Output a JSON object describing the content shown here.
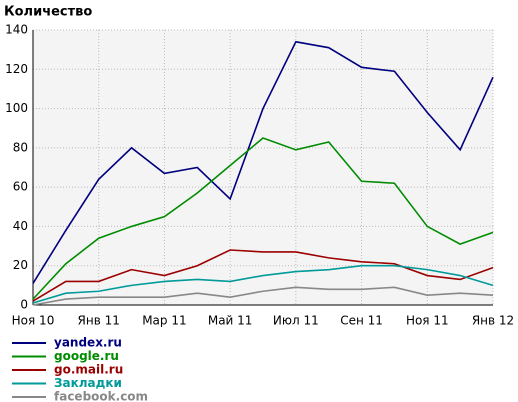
{
  "chart_data": {
    "type": "line",
    "title": "Количество",
    "categories": [
      "Ноя 10",
      null,
      "Янв 11",
      null,
      "Мар 11",
      null,
      "Май 11",
      null,
      "Июл 11",
      null,
      "Сен 11",
      null,
      "Ноя 11",
      null,
      "Янв 12"
    ],
    "series": [
      {
        "name": "yandex.ru",
        "color": "#00007f",
        "values": [
          11,
          38,
          64,
          80,
          67,
          70,
          54,
          100,
          134,
          131,
          121,
          119,
          98,
          79,
          116
        ]
      },
      {
        "name": "google.ru",
        "color": "#008c00",
        "values": [
          3,
          21,
          34,
          40,
          45,
          57,
          71,
          85,
          79,
          83,
          63,
          62,
          40,
          31,
          37
        ]
      },
      {
        "name": "go.mail.ru",
        "color": "#9b0000",
        "values": [
          2,
          12,
          12,
          18,
          15,
          20,
          28,
          27,
          27,
          24,
          22,
          21,
          15,
          13,
          19
        ]
      },
      {
        "name": "Закладки",
        "color": "#009a9a",
        "values": [
          1,
          6,
          7,
          10,
          12,
          13,
          12,
          15,
          17,
          18,
          20,
          20,
          18,
          15,
          10
        ]
      },
      {
        "name": "facebook.com",
        "color": "#888888",
        "values": [
          0,
          3,
          4,
          4,
          4,
          6,
          4,
          7,
          9,
          8,
          8,
          9,
          5,
          6,
          5
        ]
      }
    ],
    "ylim": [
      0,
      140
    ],
    "yticks": [
      0,
      20,
      40,
      60,
      80,
      100,
      120,
      140
    ],
    "grid": true
  }
}
